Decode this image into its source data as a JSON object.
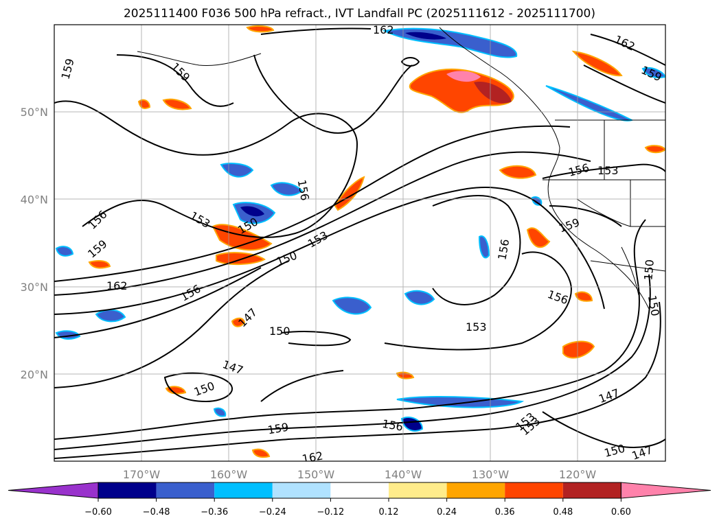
{
  "title": "2025111400 F036 500 hPa refract., IVT Landfall PC (2025111612 - 2025111700)",
  "map": {
    "lat_ticks": [
      {
        "label": "50°N",
        "lat": 50
      },
      {
        "label": "40°N",
        "lat": 40
      },
      {
        "label": "30°N",
        "lat": 30
      },
      {
        "label": "20°N",
        "lat": 20
      }
    ],
    "lon_ticks": [
      {
        "label": "170°W",
        "lon": -170
      },
      {
        "label": "160°W",
        "lon": -160
      },
      {
        "label": "150°W",
        "lon": -150
      },
      {
        "label": "140°W",
        "lon": -140
      },
      {
        "label": "130°W",
        "lon": -130
      },
      {
        "label": "120°W",
        "lon": -120
      }
    ],
    "contour_labels": [
      "162",
      "159",
      "159",
      "156",
      "159",
      "162",
      "153",
      "150",
      "150",
      "156",
      "156",
      "153",
      "147",
      "150",
      "147",
      "150",
      "156",
      "153",
      "153",
      "156",
      "150",
      "150",
      "156",
      "153",
      "159",
      "162",
      "159",
      "147",
      "150",
      "147",
      "159",
      "156",
      "153",
      "162"
    ]
  },
  "colorbar": {
    "colors": [
      "#9932cc",
      "#00008b",
      "#3a5fcd",
      "#00bfff",
      "#b0e2ff",
      "#ffffff",
      "#ffec8b",
      "#ffa500",
      "#ff4500",
      "#b22222",
      "#ff82ab"
    ],
    "ticks": [
      "−0.60",
      "−0.48",
      "−0.36",
      "−0.24",
      "−0.12",
      "0.12",
      "0.24",
      "0.36",
      "0.48",
      "0.60"
    ]
  }
}
